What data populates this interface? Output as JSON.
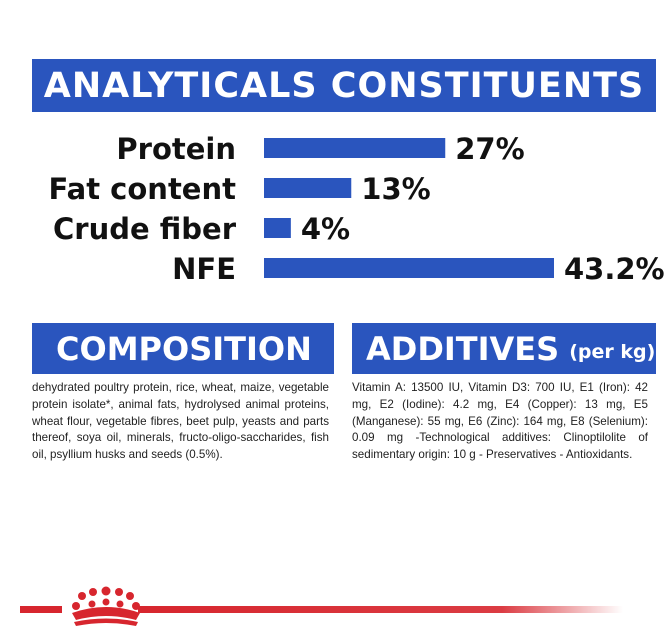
{
  "header": {
    "title": "ANALYTICALS CONSTITUENTS"
  },
  "chart_data": {
    "type": "bar",
    "orientation": "horizontal",
    "categories": [
      "Protein",
      "Fat content",
      "Crude fiber",
      "NFE"
    ],
    "values": [
      27,
      13,
      4,
      43.2
    ],
    "value_labels": [
      "27%",
      "13%",
      "4%",
      "43.2%"
    ],
    "xlim": [
      0,
      43.2
    ],
    "grid": false,
    "legend": "none",
    "bar_color": "#2a55be"
  },
  "composition": {
    "title": "COMPOSITION",
    "text": "dehydrated poultry protein, rice, wheat, maize, vegetable protein isolate*, animal fats, hydrolysed animal proteins, wheat flour, vegetable fibres, beet pulp, yeasts and parts thereof, soya oil, minerals, fructo-oligo-saccharides, fish oil, psyllium husks and seeds (0.5%)."
  },
  "additives": {
    "title": "ADDITIVES",
    "unit": "(per kg)",
    "text": "Vitamin A: 13500 IU, Vitamin D3: 700 IU, E1 (Iron): 42 mg, E2 (Iodine): 4.2 mg, E4 (Copper): 13 mg, E5 (Manganese): 55 mg, E6 (Zinc): 164 mg, E8 (Selenium): 0.09 mg -Technological additives: Clinoptilolite of sedimentary origin: 10 g - Preservatives - Antioxidants."
  },
  "footer": {
    "logo_icon": "crown-icon",
    "accent_color": "#d7262e"
  }
}
